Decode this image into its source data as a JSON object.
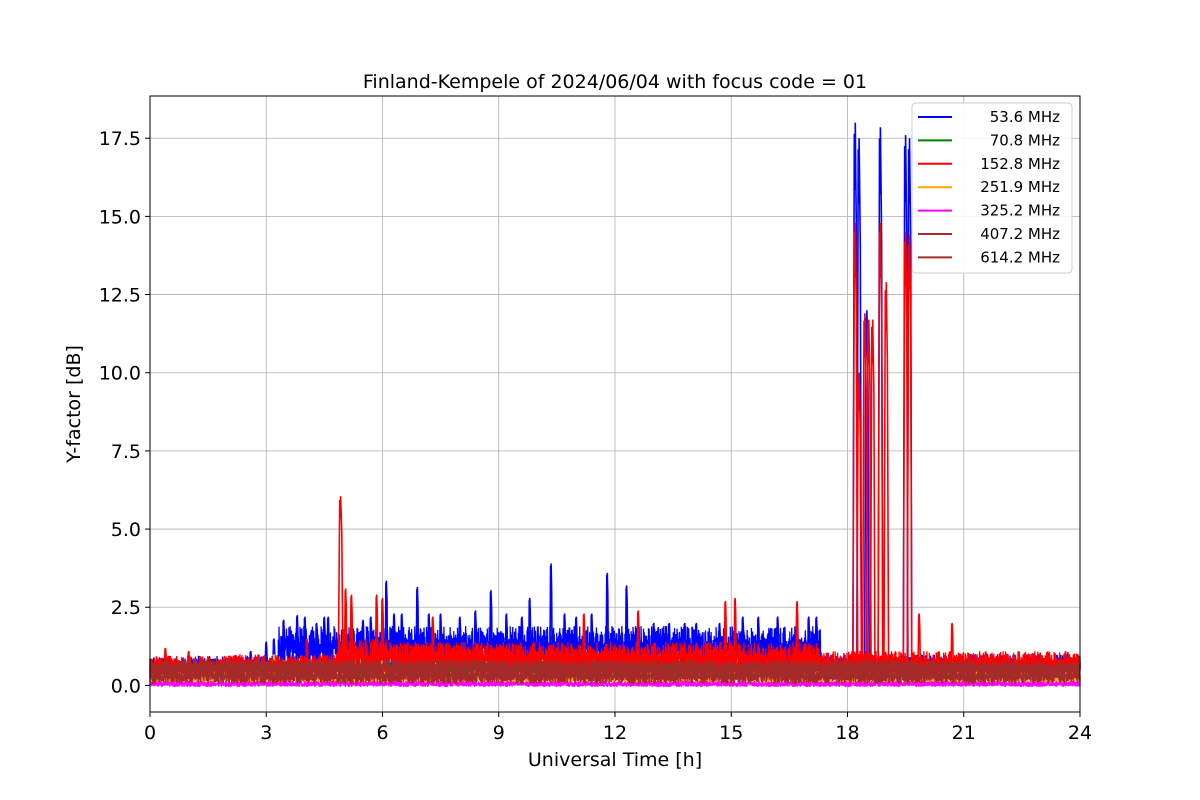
{
  "chart_data": {
    "type": "line",
    "title": "Finland-Kempele of 2024/06/04 with focus code = 01",
    "xlabel": "Universal Time [h]",
    "ylabel": "Y-factor [dB]",
    "xlim": [
      0,
      24
    ],
    "ylim": [
      -0.85,
      18.85
    ],
    "xticks": [
      "0",
      "3",
      "6",
      "9",
      "12",
      "15",
      "18",
      "21",
      "24"
    ],
    "yticks": [
      "0.0",
      "2.5",
      "5.0",
      "7.5",
      "10.0",
      "12.5",
      "15.0",
      "17.5"
    ],
    "grid": true,
    "legend_position": "top-right",
    "series": [
      {
        "name": "53.6 MHz",
        "color": "#0000ff",
        "baseline": {
          "x": [
            0,
            3.3,
            3.3,
            17.3,
            17.3,
            24
          ],
          "low": [
            0.35,
            0.35,
            0.55,
            0.55,
            0.4,
            0.4
          ],
          "high": [
            0.95,
            0.95,
            1.9,
            1.9,
            1.0,
            1.0
          ]
        },
        "spikes": [
          [
            2.6,
            1.1
          ],
          [
            3.0,
            1.4
          ],
          [
            3.2,
            1.5
          ],
          [
            3.45,
            2.1
          ],
          [
            3.8,
            2.25
          ],
          [
            4.0,
            2.2
          ],
          [
            4.3,
            2.0
          ],
          [
            4.5,
            2.2
          ],
          [
            4.6,
            2.2
          ],
          [
            5.2,
            2.1
          ],
          [
            5.5,
            2.1
          ],
          [
            5.7,
            2.2
          ],
          [
            6.1,
            3.35
          ],
          [
            6.3,
            2.3
          ],
          [
            6.5,
            2.3
          ],
          [
            6.9,
            3.15
          ],
          [
            7.2,
            2.3
          ],
          [
            7.5,
            2.3
          ],
          [
            8.0,
            2.2
          ],
          [
            8.4,
            2.4
          ],
          [
            8.8,
            3.05
          ],
          [
            9.2,
            2.3
          ],
          [
            9.6,
            2.2
          ],
          [
            9.8,
            2.8
          ],
          [
            10.35,
            3.9
          ],
          [
            10.7,
            2.3
          ],
          [
            11.0,
            2.2
          ],
          [
            11.4,
            2.3
          ],
          [
            11.8,
            3.6
          ],
          [
            12.3,
            3.2
          ],
          [
            12.6,
            2.2
          ],
          [
            13.0,
            2.0
          ],
          [
            13.4,
            2.0
          ],
          [
            13.8,
            2.0
          ],
          [
            14.1,
            2.0
          ],
          [
            14.7,
            2.0
          ],
          [
            15.3,
            2.2
          ],
          [
            15.7,
            2.2
          ],
          [
            16.2,
            2.2
          ],
          [
            16.7,
            2.3
          ],
          [
            17.0,
            2.2
          ],
          [
            17.2,
            2.2
          ],
          [
            18.2,
            18.0
          ],
          [
            18.3,
            17.5
          ],
          [
            18.5,
            12.0
          ],
          [
            18.85,
            17.85
          ],
          [
            19.5,
            17.6
          ],
          [
            19.6,
            17.5
          ]
        ]
      },
      {
        "name": "70.8 MHz",
        "color": "#008000",
        "baseline": {
          "x": [
            0,
            24
          ],
          "low": [
            0.3,
            0.3
          ],
          "high": [
            0.8,
            0.8
          ]
        },
        "spikes": [
          [
            5.0,
            1.8
          ],
          [
            5.9,
            1.2
          ],
          [
            12.7,
            1.2
          ]
        ]
      },
      {
        "name": "152.8 MHz",
        "color": "#ff0000",
        "baseline": {
          "x": [
            0,
            2.0,
            2.0,
            4.8,
            4.8,
            6.1,
            6.1,
            17.3,
            17.3,
            24
          ],
          "low": [
            0.2,
            0.2,
            0.3,
            0.3,
            0.3,
            0.3,
            0.35,
            0.35,
            0.3,
            0.3
          ],
          "high": [
            0.95,
            0.95,
            1.0,
            1.0,
            1.5,
            1.5,
            1.4,
            1.4,
            1.1,
            1.1
          ]
        },
        "spikes": [
          [
            0.4,
            1.2
          ],
          [
            1.0,
            1.1
          ],
          [
            4.05,
            1.5
          ],
          [
            4.92,
            6.05
          ],
          [
            5.05,
            3.1
          ],
          [
            5.2,
            2.9
          ],
          [
            5.85,
            2.9
          ],
          [
            6.0,
            2.8
          ],
          [
            7.3,
            2.2
          ],
          [
            11.2,
            2.3
          ],
          [
            12.6,
            2.4
          ],
          [
            14.85,
            2.7
          ],
          [
            15.1,
            2.8
          ],
          [
            16.7,
            2.7
          ],
          [
            18.2,
            14.8
          ],
          [
            18.3,
            10.0
          ],
          [
            18.45,
            11.9
          ],
          [
            18.55,
            11.7
          ],
          [
            18.65,
            11.7
          ],
          [
            18.85,
            14.8
          ],
          [
            19.0,
            12.9
          ],
          [
            19.5,
            14.5
          ],
          [
            19.6,
            14.4
          ],
          [
            19.85,
            2.3
          ],
          [
            20.7,
            2.0
          ]
        ]
      },
      {
        "name": "251.9 MHz",
        "color": "#ffa500",
        "baseline": {
          "x": [
            0,
            24
          ],
          "low": [
            0.05,
            0.05
          ],
          "high": [
            0.45,
            0.45
          ]
        },
        "spikes": [
          [
            3.2,
            1.0
          ],
          [
            6.0,
            0.8
          ]
        ]
      },
      {
        "name": "325.2 MHz",
        "color": "#ff00ff",
        "baseline": {
          "x": [
            0,
            24
          ],
          "low": [
            -0.05,
            -0.05
          ],
          "high": [
            0.15,
            0.15
          ]
        },
        "spikes": []
      },
      {
        "name": "407.2 MHz",
        "color": "#a52a2a",
        "baseline": {
          "x": [
            0,
            1.0,
            1.0,
            24
          ],
          "low": [
            0.3,
            0.3,
            0.3,
            0.3
          ],
          "high": [
            0.8,
            0.8,
            0.85,
            0.8
          ]
        },
        "spikes": [
          [
            18.5,
            0.9
          ],
          [
            19.0,
            0.85
          ]
        ]
      },
      {
        "name": "614.2 MHz",
        "color": "#a52a2a",
        "baseline": {
          "x": [
            0,
            24
          ],
          "low": [
            0.05,
            0.05
          ],
          "high": [
            0.55,
            0.55
          ]
        },
        "spikes": []
      }
    ]
  }
}
